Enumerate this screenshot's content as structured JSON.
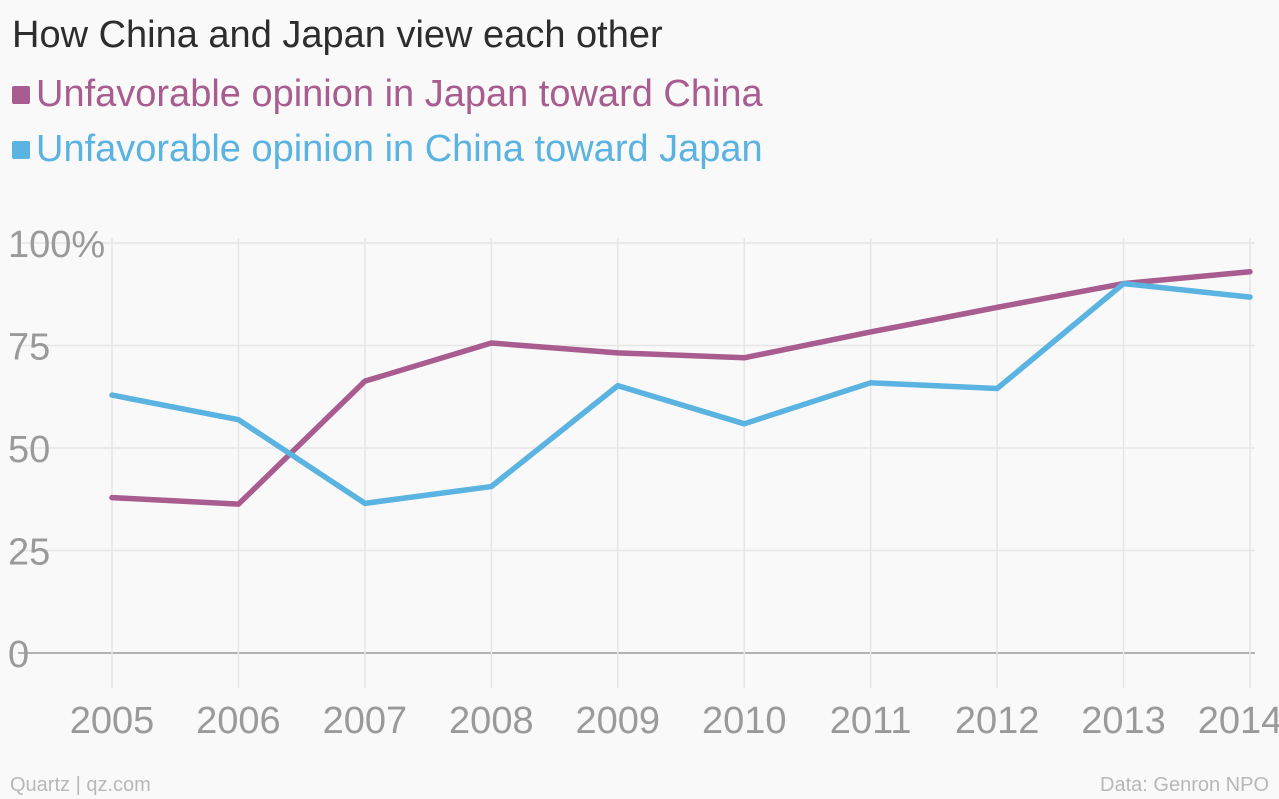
{
  "chart_data": {
    "type": "line",
    "title": "How China and Japan view each other",
    "x": [
      "2005",
      "2006",
      "2007",
      "2008",
      "2009",
      "2010",
      "2011",
      "2012",
      "2013",
      "2014"
    ],
    "y_ticks": [
      "100%",
      "75",
      "50",
      "25",
      "0"
    ],
    "ylim": [
      0,
      100
    ],
    "grid": true,
    "legend_position": "top-left",
    "series": [
      {
        "name": "Unfavorable opinion in Japan toward China",
        "color": "#a85c8f",
        "values": [
          37.9,
          36.3,
          66.3,
          75.6,
          73.2,
          72.0,
          78.3,
          84.3,
          90.1,
          93.0
        ]
      },
      {
        "name": "Unfavorable opinion in China toward Japan",
        "color": "#5ab3e0",
        "values": [
          62.9,
          56.9,
          36.5,
          40.6,
          65.2,
          55.9,
          65.9,
          64.5,
          90.1,
          86.8
        ]
      }
    ]
  },
  "footer": {
    "left": "Quartz | qz.com",
    "right": "Data: Genron NPO"
  }
}
